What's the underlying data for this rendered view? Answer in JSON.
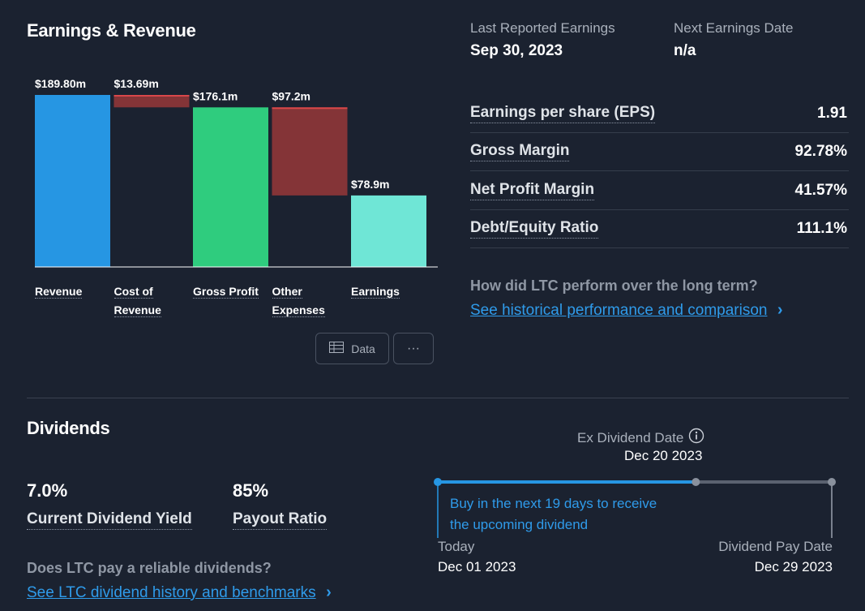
{
  "earnings": {
    "title": "Earnings & Revenue",
    "buttons": {
      "data_label": "Data",
      "more_label": "···"
    }
  },
  "chart_data": {
    "type": "bar",
    "subtype": "waterfall",
    "categories": [
      "Revenue",
      "Cost of Revenue",
      "Gross Profit",
      "Other Expenses",
      "Earnings"
    ],
    "category_lines": [
      [
        "Revenue"
      ],
      [
        "Cost of",
        "Revenue"
      ],
      [
        "Gross Profit"
      ],
      [
        "Other",
        "Expenses"
      ],
      [
        "Earnings"
      ]
    ],
    "values": [
      189.8,
      13.69,
      176.1,
      97.2,
      78.9
    ],
    "value_labels": [
      "$189.80m",
      "$13.69m",
      "$176.1m",
      "$97.2m",
      "$78.9m"
    ],
    "kinds": [
      "total",
      "decrease",
      "total",
      "decrease",
      "total"
    ],
    "colors": [
      "#2696e3",
      "#843437",
      "#2fcc7e",
      "#843437",
      "#6fe6d6"
    ],
    "ylim": [
      0,
      189.8
    ]
  },
  "reporting": {
    "last_reported_label": "Last Reported Earnings",
    "last_reported_value": "Sep 30, 2023",
    "next_label": "Next Earnings Date",
    "next_value": "n/a"
  },
  "metrics": [
    {
      "label": "Earnings per share (EPS)",
      "value": "1.91"
    },
    {
      "label": "Gross Margin",
      "value": "92.78%"
    },
    {
      "label": "Net Profit Margin",
      "value": "41.57%"
    },
    {
      "label": "Debt/Equity Ratio",
      "value": "111.1%"
    }
  ],
  "performance": {
    "question": "How did LTC perform over the long term?",
    "link": "See historical performance and comparison"
  },
  "dividends": {
    "title": "Dividends",
    "yield_value": "7.0%",
    "yield_label": "Current Dividend Yield",
    "payout_value": "85%",
    "payout_label": "Payout Ratio",
    "question": "Does LTC pay a reliable dividends?",
    "link": "See LTC dividend history and benchmarks"
  },
  "timeline": {
    "ex_label": "Ex Dividend Date",
    "ex_date": "Dec 20 2023",
    "buy_line1": "Buy in the next 19 days to receive",
    "buy_line2": "the upcoming dividend",
    "today_label": "Today",
    "today_date": "Dec 01 2023",
    "pay_label": "Dividend Pay Date",
    "pay_date": "Dec 29 2023",
    "progress": 0.655
  },
  "icons": {
    "info": "info-icon",
    "table": "table-icon",
    "chevron": "chevron-right-icon"
  }
}
